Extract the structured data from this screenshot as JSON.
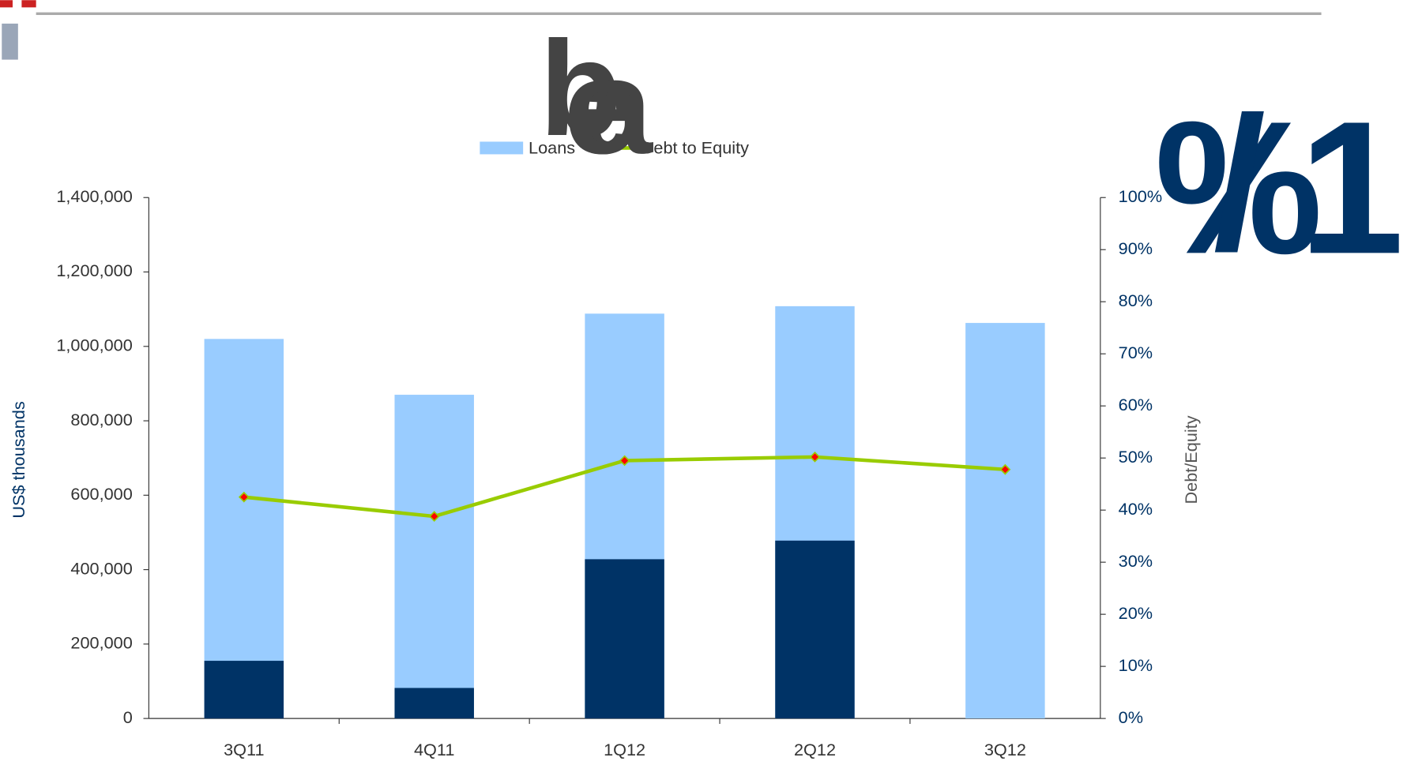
{
  "chart_data": {
    "type": "bar-line",
    "annotations": [
      "b",
      "a",
      "e",
      "%",
      "/",
      "1"
    ],
    "categories": [
      "3Q11",
      "4Q11",
      "1Q12",
      "2Q12",
      "3Q12"
    ],
    "y_label": "US$ thousands",
    "y2_label": "Debt/Equity",
    "series": [
      {
        "name": "Loans",
        "type": "bar",
        "color": "#99ccff",
        "values": [
          1020000,
          870000,
          1088000,
          1108000,
          1063000
        ]
      },
      {
        "type": "bar",
        "color": "#003366",
        "values": [
          155000,
          82000,
          428000,
          478000,
          0
        ]
      },
      {
        "name": "Debt to Equity",
        "type": "line",
        "axis": "y2",
        "color": "#99cc00",
        "marker_color": "#ff0000",
        "values": [
          42.5,
          38.8,
          49.5,
          50.2,
          47.8
        ]
      }
    ],
    "ylim": [
      0,
      1400000
    ],
    "yticks": [
      0,
      {
        "value": 200000,
        "label": "200,000"
      },
      {
        "value": 400000,
        "label": "400,000"
      },
      {
        "value": 600000,
        "label": "600,000"
      },
      {
        "value": 800000,
        "label": "800,000"
      },
      {
        "value": 1000000,
        "label": "1,000,000"
      },
      {
        "value": 1200000,
        "label": "1,200,000"
      },
      {
        "value": 1400000,
        "label": "1,400,000"
      }
    ],
    "y2lim": [
      0,
      100
    ],
    "y2ticks": [
      {
        "value": 0,
        "label": "0%"
      },
      {
        "value": 10,
        "label": "10%"
      },
      {
        "value": 20,
        "label": "20%"
      },
      {
        "value": 30,
        "label": "30%"
      },
      {
        "value": 40,
        "label": "40%"
      },
      {
        "value": 50,
        "label": "50%"
      },
      {
        "value": 60,
        "label": "60%"
      },
      {
        "value": 70,
        "label": "70%"
      },
      {
        "value": 80,
        "label": "80%"
      },
      {
        "value": 90,
        "label": "90%"
      },
      {
        "value": 100,
        "label": "100%"
      }
    ]
  }
}
